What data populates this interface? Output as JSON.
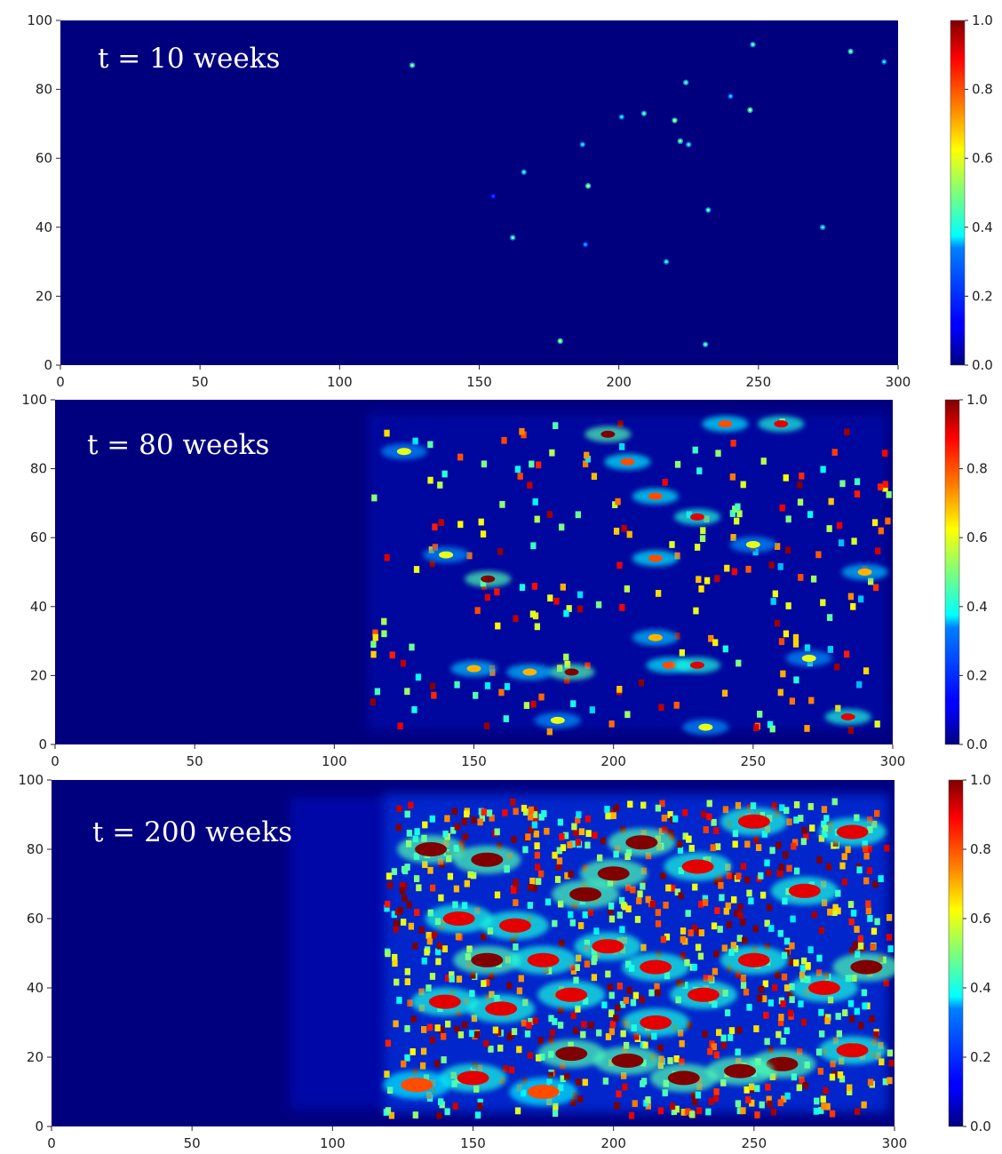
{
  "chart_data": [
    {
      "type": "heatmap",
      "annotation": "t = 10 weeks",
      "xlim": [
        0,
        300
      ],
      "ylim": [
        0,
        100
      ],
      "xticks": [
        "0",
        "50",
        "100",
        "150",
        "200",
        "250",
        "300"
      ],
      "yticks": [
        "0",
        "20",
        "40",
        "60",
        "80",
        "100"
      ],
      "colorbar": {
        "range": [
          0.0,
          1.0
        ],
        "ticks": [
          "0.0",
          "0.2",
          "0.4",
          "0.6",
          "0.8",
          "1.0"
        ]
      },
      "hotspots": [
        {
          "x": 126,
          "y": 87,
          "v": 0.55
        },
        {
          "x": 155,
          "y": 49,
          "v": 0.2
        },
        {
          "x": 162,
          "y": 37,
          "v": 0.5
        },
        {
          "x": 166,
          "y": 56,
          "v": 0.45
        },
        {
          "x": 179,
          "y": 7,
          "v": 0.6
        },
        {
          "x": 187,
          "y": 64,
          "v": 0.4
        },
        {
          "x": 188,
          "y": 35,
          "v": 0.3
        },
        {
          "x": 189,
          "y": 52,
          "v": 0.6
        },
        {
          "x": 201,
          "y": 72,
          "v": 0.4
        },
        {
          "x": 209,
          "y": 73,
          "v": 0.5
        },
        {
          "x": 217,
          "y": 30,
          "v": 0.45
        },
        {
          "x": 220,
          "y": 71,
          "v": 0.6
        },
        {
          "x": 222,
          "y": 65,
          "v": 0.55
        },
        {
          "x": 224,
          "y": 82,
          "v": 0.5
        },
        {
          "x": 225,
          "y": 64,
          "v": 0.45
        },
        {
          "x": 231,
          "y": 6,
          "v": 0.5
        },
        {
          "x": 232,
          "y": 45,
          "v": 0.5
        },
        {
          "x": 240,
          "y": 78,
          "v": 0.35
        },
        {
          "x": 247,
          "y": 74,
          "v": 0.6
        },
        {
          "x": 248,
          "y": 93,
          "v": 0.5
        },
        {
          "x": 273,
          "y": 40,
          "v": 0.45
        },
        {
          "x": 283,
          "y": 91,
          "v": 0.55
        },
        {
          "x": 295,
          "y": 88,
          "v": 0.4
        }
      ]
    },
    {
      "type": "heatmap",
      "annotation": "t = 80 weeks",
      "xlim": [
        0,
        300
      ],
      "ylim": [
        0,
        100
      ],
      "xticks": [
        "0",
        "50",
        "100",
        "150",
        "200",
        "250",
        "300"
      ],
      "yticks": [
        "0",
        "20",
        "40",
        "60",
        "80",
        "100"
      ],
      "colorbar": {
        "range": [
          0.0,
          1.0
        ],
        "ticks": [
          "0.0",
          "0.2",
          "0.4",
          "0.6",
          "0.8",
          "1.0"
        ]
      },
      "occupied_region_x": [
        112,
        298
      ],
      "hotspots": [
        {
          "x": 155,
          "y": 48,
          "v": 1.0
        },
        {
          "x": 185,
          "y": 21,
          "v": 1.0
        },
        {
          "x": 170,
          "y": 21,
          "v": 0.7
        },
        {
          "x": 150,
          "y": 22,
          "v": 0.7
        },
        {
          "x": 220,
          "y": 23,
          "v": 0.8
        },
        {
          "x": 230,
          "y": 23,
          "v": 0.9
        },
        {
          "x": 205,
          "y": 82,
          "v": 0.8
        },
        {
          "x": 198,
          "y": 90,
          "v": 1.0
        },
        {
          "x": 215,
          "y": 72,
          "v": 0.8
        },
        {
          "x": 230,
          "y": 66,
          "v": 0.9
        },
        {
          "x": 215,
          "y": 54,
          "v": 0.8
        },
        {
          "x": 215,
          "y": 31,
          "v": 0.7
        },
        {
          "x": 240,
          "y": 93,
          "v": 0.8
        },
        {
          "x": 260,
          "y": 93,
          "v": 0.9
        },
        {
          "x": 290,
          "y": 50,
          "v": 0.7
        },
        {
          "x": 284,
          "y": 8,
          "v": 0.9
        },
        {
          "x": 270,
          "y": 25,
          "v": 0.6
        },
        {
          "x": 250,
          "y": 58,
          "v": 0.6
        },
        {
          "x": 140,
          "y": 55,
          "v": 0.6
        },
        {
          "x": 125,
          "y": 85,
          "v": 0.6
        },
        {
          "x": 180,
          "y": 7,
          "v": 0.6
        },
        {
          "x": 233,
          "y": 5,
          "v": 0.6
        }
      ]
    },
    {
      "type": "heatmap",
      "annotation": "t = 200 weeks",
      "xlim": [
        0,
        300
      ],
      "ylim": [
        0,
        100
      ],
      "xticks": [
        "0",
        "50",
        "100",
        "150",
        "200",
        "250",
        "300"
      ],
      "yticks": [
        "0",
        "20",
        "40",
        "60",
        "80",
        "100"
      ],
      "colorbar": {
        "range": [
          0.0,
          1.0
        ],
        "ticks": [
          "0.0",
          "0.2",
          "0.4",
          "0.6",
          "0.8",
          "1.0"
        ]
      },
      "occupied_region_x": [
        118,
        298
      ],
      "faint_region_x": [
        85,
        118
      ],
      "hotspots": [
        {
          "x": 260,
          "y": 18,
          "v": 1.0
        },
        {
          "x": 245,
          "y": 16,
          "v": 1.0
        },
        {
          "x": 225,
          "y": 14,
          "v": 1.0
        },
        {
          "x": 185,
          "y": 21,
          "v": 1.0
        },
        {
          "x": 205,
          "y": 19,
          "v": 1.0
        },
        {
          "x": 285,
          "y": 22,
          "v": 0.9
        },
        {
          "x": 200,
          "y": 73,
          "v": 1.0
        },
        {
          "x": 210,
          "y": 82,
          "v": 1.0
        },
        {
          "x": 190,
          "y": 67,
          "v": 1.0
        },
        {
          "x": 135,
          "y": 80,
          "v": 1.0
        },
        {
          "x": 155,
          "y": 77,
          "v": 1.0
        },
        {
          "x": 165,
          "y": 58,
          "v": 0.9
        },
        {
          "x": 145,
          "y": 60,
          "v": 0.9
        },
        {
          "x": 155,
          "y": 48,
          "v": 1.0
        },
        {
          "x": 175,
          "y": 48,
          "v": 0.9
        },
        {
          "x": 198,
          "y": 52,
          "v": 0.9
        },
        {
          "x": 215,
          "y": 46,
          "v": 0.9
        },
        {
          "x": 232,
          "y": 38,
          "v": 0.9
        },
        {
          "x": 250,
          "y": 48,
          "v": 0.9
        },
        {
          "x": 275,
          "y": 40,
          "v": 0.9
        },
        {
          "x": 290,
          "y": 46,
          "v": 1.0
        },
        {
          "x": 268,
          "y": 68,
          "v": 0.9
        },
        {
          "x": 285,
          "y": 85,
          "v": 0.9
        },
        {
          "x": 250,
          "y": 88,
          "v": 0.9
        },
        {
          "x": 230,
          "y": 75,
          "v": 0.9
        },
        {
          "x": 160,
          "y": 34,
          "v": 0.9
        },
        {
          "x": 140,
          "y": 36,
          "v": 0.9
        },
        {
          "x": 185,
          "y": 38,
          "v": 0.9
        },
        {
          "x": 215,
          "y": 30,
          "v": 0.9
        },
        {
          "x": 150,
          "y": 14,
          "v": 0.9
        },
        {
          "x": 175,
          "y": 10,
          "v": 0.8
        },
        {
          "x": 130,
          "y": 12,
          "v": 0.8
        }
      ]
    }
  ]
}
